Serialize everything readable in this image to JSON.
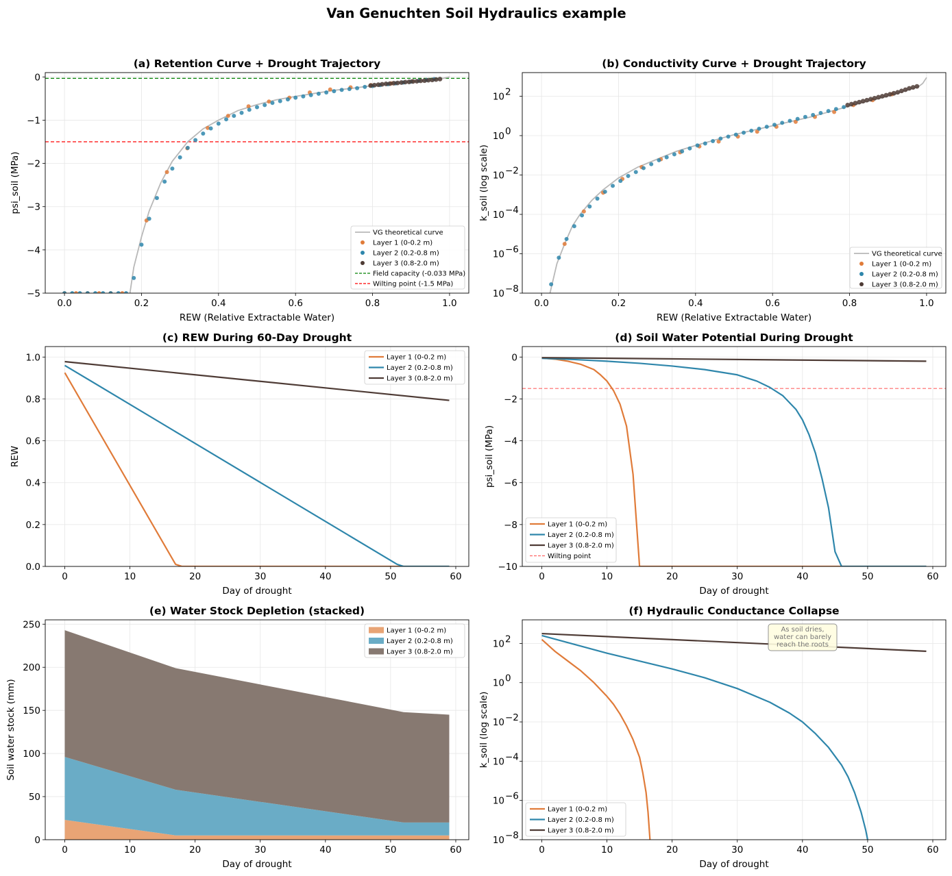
{
  "title": "Van Genuchten Soil Hydraulics example",
  "colors": {
    "layer1": "#e07b39",
    "layer2": "#2e86ab",
    "layer3": "#4e3b35",
    "layer1_fill": "#e8a475",
    "layer2_fill": "#6aacc6",
    "layer3_fill": "#877971",
    "theory": "#b8b8b8",
    "field_capacity": "#008000",
    "wilting": "#ff0000",
    "grid": "#e6e6e6"
  },
  "chart_data": [
    {
      "id": "a",
      "type": "scatter",
      "title": "(a)  Retention Curve + Drought Trajectory",
      "xlabel": "REW  (Relative Extractable Water)",
      "ylabel": "psi_soil  (MPa)",
      "xlim": [
        -0.05,
        1.05
      ],
      "ylim": [
        -5,
        0.1
      ],
      "yscale": "linear",
      "xticks": [
        0.0,
        0.2,
        0.4,
        0.6,
        0.8,
        1.0
      ],
      "xtick_labels": [
        "0.0",
        "0.2",
        "0.4",
        "0.6",
        "0.8",
        "1.0"
      ],
      "yticks": [
        0,
        -1,
        -2,
        -3,
        -4,
        -5
      ],
      "ytick_labels": [
        "0",
        "−1",
        "−2",
        "−3",
        "−4",
        "−5"
      ],
      "theory_curve": {
        "name": "VG theoretical curve",
        "x": [
          0.17,
          0.18,
          0.2,
          0.22,
          0.25,
          0.28,
          0.32,
          0.36,
          0.4,
          0.45,
          0.5,
          0.55,
          0.6,
          0.65,
          0.7,
          0.75,
          0.8,
          0.85,
          0.9,
          0.95,
          0.98,
          1.0
        ],
        "y": [
          -5.0,
          -4.4,
          -3.7,
          -3.1,
          -2.45,
          -1.95,
          -1.5,
          -1.2,
          -1.0,
          -0.78,
          -0.64,
          -0.53,
          -0.45,
          -0.38,
          -0.31,
          -0.26,
          -0.2,
          -0.15,
          -0.11,
          -0.07,
          -0.04,
          0.0
        ]
      },
      "scatter_series": [
        {
          "name": "Layer 1 (0-0.2 m)",
          "x": [
            0.0,
            0.03,
            0.06,
            0.09,
            0.12,
            0.15,
            0.213,
            0.266,
            0.319,
            0.372,
            0.425,
            0.478,
            0.531,
            0.584,
            0.637,
            0.69,
            0.743,
            0.796,
            0.849,
            0.902
          ],
          "y": [
            -5.0,
            -5.0,
            -5.0,
            -5.0,
            -5.0,
            -5.0,
            -3.32,
            -2.2,
            -1.65,
            -1.18,
            -0.9,
            -0.68,
            -0.57,
            -0.48,
            -0.36,
            -0.29,
            -0.24,
            -0.19,
            -0.15,
            -0.1
          ]
        },
        {
          "name": "Layer 2 (0.2-0.8 m)",
          "x": [
            0.0,
            0.02,
            0.04,
            0.06,
            0.08,
            0.1,
            0.12,
            0.14,
            0.16,
            0.18,
            0.2,
            0.22,
            0.24,
            0.26,
            0.28,
            0.3,
            0.32,
            0.34,
            0.36,
            0.38,
            0.4,
            0.42,
            0.44,
            0.46,
            0.48,
            0.5,
            0.52,
            0.54,
            0.56,
            0.58,
            0.6,
            0.62,
            0.64,
            0.66,
            0.68,
            0.7,
            0.72,
            0.74,
            0.76,
            0.78,
            0.8,
            0.82,
            0.84,
            0.86,
            0.88,
            0.9,
            0.92,
            0.94,
            0.96
          ],
          "y": [
            -5.0,
            -5.0,
            -5.0,
            -5.0,
            -5.0,
            -5.0,
            -5.0,
            -5.0,
            -5.0,
            -4.65,
            -3.88,
            -3.28,
            -2.8,
            -2.42,
            -2.12,
            -1.86,
            -1.64,
            -1.46,
            -1.31,
            -1.19,
            -1.08,
            -0.98,
            -0.9,
            -0.83,
            -0.76,
            -0.7,
            -0.65,
            -0.6,
            -0.56,
            -0.52,
            -0.48,
            -0.45,
            -0.42,
            -0.39,
            -0.36,
            -0.33,
            -0.3,
            -0.28,
            -0.26,
            -0.23,
            -0.21,
            -0.19,
            -0.17,
            -0.15,
            -0.13,
            -0.11,
            -0.09,
            -0.07,
            -0.05
          ]
        },
        {
          "name": "Layer 3 (0.8-2.0 m)",
          "x": [
            0.795,
            0.805,
            0.815,
            0.825,
            0.835,
            0.845,
            0.855,
            0.865,
            0.875,
            0.885,
            0.895,
            0.905,
            0.915,
            0.925,
            0.935,
            0.945,
            0.955,
            0.965,
            0.975
          ],
          "y": [
            -0.2,
            -0.19,
            -0.18,
            -0.17,
            -0.16,
            -0.155,
            -0.145,
            -0.14,
            -0.13,
            -0.12,
            -0.115,
            -0.105,
            -0.1,
            -0.09,
            -0.085,
            -0.075,
            -0.07,
            -0.06,
            -0.05
          ]
        }
      ],
      "hlines": [
        {
          "name": "Field capacity (-0.033 MPa)",
          "y": -0.033,
          "color_key": "field_capacity"
        },
        {
          "name": "Wilting point (-1.5 MPa)",
          "y": -1.5,
          "color_key": "wilting"
        }
      ],
      "legend": "lower-right"
    },
    {
      "id": "b",
      "type": "scatter",
      "title": "(b)  Conductivity Curve + Drought Trajectory",
      "xlabel": "REW  (Relative Extractable Water)",
      "ylabel": "k_soil  (log scale)",
      "xlim": [
        -0.05,
        1.05
      ],
      "ylim_log10": [
        -8,
        3.2
      ],
      "yscale": "log",
      "xticks": [
        0.0,
        0.2,
        0.4,
        0.6,
        0.8,
        1.0
      ],
      "xtick_labels": [
        "0.0",
        "0.2",
        "0.4",
        "0.6",
        "0.8",
        "1.0"
      ],
      "yticks_log10": [
        -8,
        -6,
        -4,
        -2,
        0,
        2
      ],
      "ytick_labels": [
        "10",
        "10",
        "10",
        "10",
        "10",
        "10"
      ],
      "ytick_exponents": [
        "−8",
        "−6",
        "−4",
        "−2",
        "0",
        "2"
      ],
      "theory_curve": {
        "name": "VG theoretical curve",
        "x": [
          0.022,
          0.04,
          0.06,
          0.08,
          0.1,
          0.13,
          0.16,
          0.2,
          0.25,
          0.3,
          0.35,
          0.4,
          0.5,
          0.6,
          0.7,
          0.8,
          0.85,
          0.9,
          0.95,
          0.98,
          0.99,
          1.0
        ],
        "log10_y": [
          -8.0,
          -6.5,
          -5.5,
          -4.6,
          -4.0,
          -3.3,
          -2.75,
          -2.15,
          -1.6,
          -1.2,
          -0.8,
          -0.5,
          0.05,
          0.5,
          0.95,
          1.5,
          1.75,
          2.0,
          2.3,
          2.5,
          2.65,
          2.95
        ]
      },
      "scatter_series": [
        {
          "name": "Layer 1 (0-0.2 m)",
          "x": [
            0.06,
            0.11,
            0.16,
            0.21,
            0.26,
            0.31,
            0.36,
            0.41,
            0.46,
            0.51,
            0.56,
            0.61,
            0.66,
            0.71,
            0.76,
            0.81,
            0.86,
            0.91
          ],
          "log10_y": [
            -5.5,
            -3.85,
            -2.9,
            -2.2,
            -1.6,
            -1.2,
            -0.85,
            -0.55,
            -0.3,
            -0.05,
            0.2,
            0.45,
            0.7,
            0.95,
            1.2,
            1.55,
            1.8,
            2.1
          ]
        },
        {
          "name": "Layer 2 (0.2-0.8 m)",
          "x": [
            0.025,
            0.045,
            0.065,
            0.085,
            0.105,
            0.125,
            0.145,
            0.165,
            0.185,
            0.205,
            0.225,
            0.245,
            0.265,
            0.285,
            0.305,
            0.325,
            0.345,
            0.365,
            0.385,
            0.405,
            0.425,
            0.445,
            0.465,
            0.485,
            0.505,
            0.525,
            0.545,
            0.565,
            0.585,
            0.605,
            0.625,
            0.645,
            0.665,
            0.685,
            0.705,
            0.725,
            0.745,
            0.765,
            0.785
          ],
          "log10_y": [
            -7.55,
            -6.2,
            -5.25,
            -4.6,
            -4.05,
            -3.6,
            -3.2,
            -2.85,
            -2.55,
            -2.3,
            -2.05,
            -1.85,
            -1.65,
            -1.45,
            -1.25,
            -1.1,
            -0.95,
            -0.8,
            -0.65,
            -0.5,
            -0.4,
            -0.28,
            -0.15,
            -0.05,
            0.05,
            0.15,
            0.25,
            0.35,
            0.45,
            0.55,
            0.65,
            0.75,
            0.85,
            0.95,
            1.05,
            1.15,
            1.25,
            1.35,
            1.45
          ]
        },
        {
          "name": "Layer 3 (0.8-2.0 m)",
          "x": [
            0.795,
            0.805,
            0.815,
            0.825,
            0.835,
            0.845,
            0.855,
            0.865,
            0.875,
            0.885,
            0.895,
            0.905,
            0.915,
            0.925,
            0.935,
            0.945,
            0.955,
            0.965,
            0.975
          ],
          "log10_y": [
            1.55,
            1.6,
            1.65,
            1.7,
            1.75,
            1.8,
            1.85,
            1.9,
            1.95,
            2.0,
            2.05,
            2.1,
            2.15,
            2.2,
            2.27,
            2.33,
            2.4,
            2.45,
            2.5
          ]
        }
      ],
      "legend": "lower-right"
    },
    {
      "id": "c",
      "type": "line",
      "title": "(c)  REW During 60-Day Drought",
      "xlabel": "Day of drought",
      "ylabel": "REW",
      "xlim": [
        -3,
        62
      ],
      "ylim": [
        0,
        1.05
      ],
      "yscale": "linear",
      "xticks": [
        0,
        10,
        20,
        30,
        40,
        50,
        60
      ],
      "xtick_labels": [
        "0",
        "10",
        "20",
        "30",
        "40",
        "50",
        "60"
      ],
      "yticks": [
        0.0,
        0.2,
        0.4,
        0.6,
        0.8,
        1.0
      ],
      "ytick_labels": [
        "0.0",
        "0.2",
        "0.4",
        "0.6",
        "0.8",
        "1.0"
      ],
      "series": [
        {
          "name": "Layer 1 (0-0.2 m)",
          "x": [
            0,
            17,
            18,
            59
          ],
          "y": [
            0.925,
            0.01,
            0.0,
            0.0
          ]
        },
        {
          "name": "Layer 2 (0.2-0.8 m)",
          "x": [
            0,
            51,
            52,
            59
          ],
          "y": [
            0.96,
            0.01,
            0.0,
            0.0
          ]
        },
        {
          "name": "Layer 3 (0.8-2.0 m)",
          "x": [
            0,
            59
          ],
          "y": [
            0.978,
            0.793
          ]
        }
      ],
      "legend": "upper-right"
    },
    {
      "id": "d",
      "type": "line",
      "title": "(d)  Soil Water Potential During Drought",
      "xlabel": "Day of drought",
      "ylabel": "psi_soil  (MPa)",
      "xlim": [
        -3,
        62
      ],
      "ylim": [
        -10,
        0.5
      ],
      "yscale": "linear",
      "xticks": [
        0,
        10,
        20,
        30,
        40,
        50,
        60
      ],
      "xtick_labels": [
        "0",
        "10",
        "20",
        "30",
        "40",
        "50",
        "60"
      ],
      "yticks": [
        0,
        -2,
        -4,
        -6,
        -8,
        -10
      ],
      "ytick_labels": [
        "0",
        "−2",
        "−4",
        "−6",
        "−8",
        "−10"
      ],
      "series": [
        {
          "name": "Layer 1 (0-0.2 m)",
          "x": [
            0,
            2,
            4,
            6,
            8,
            9,
            10,
            11,
            12,
            13,
            14,
            15,
            16,
            59
          ],
          "y": [
            -0.05,
            -0.1,
            -0.2,
            -0.35,
            -0.6,
            -0.85,
            -1.15,
            -1.6,
            -2.25,
            -3.3,
            -5.6,
            -10.0,
            -10.0,
            -10.0
          ]
        },
        {
          "name": "Layer 2 (0.2-0.8 m)",
          "x": [
            0,
            5,
            10,
            15,
            20,
            25,
            30,
            33,
            35,
            37,
            39,
            40,
            41,
            42,
            43,
            44,
            45,
            46,
            47,
            59
          ],
          "y": [
            -0.06,
            -0.12,
            -0.2,
            -0.3,
            -0.43,
            -0.6,
            -0.85,
            -1.15,
            -1.45,
            -1.85,
            -2.5,
            -3.0,
            -3.7,
            -4.6,
            -5.8,
            -7.2,
            -9.3,
            -10.0,
            -10.0,
            -10.0
          ]
        },
        {
          "name": "Layer 3 (0.8-2.0 m)",
          "x": [
            0,
            59
          ],
          "y": [
            -0.03,
            -0.2
          ]
        }
      ],
      "hlines": [
        {
          "name": "Wilting point",
          "y": -1.5,
          "color_key": "wilting"
        }
      ],
      "legend": "lower-left"
    },
    {
      "id": "e",
      "type": "area",
      "stacked": true,
      "title": "(e)  Water Stock Depletion (stacked)",
      "xlabel": "Day of drought",
      "ylabel": "Soil water stock  (mm)",
      "xlim": [
        -3,
        62
      ],
      "ylim": [
        0,
        255
      ],
      "yscale": "linear",
      "xticks": [
        0,
        10,
        20,
        30,
        40,
        50,
        60
      ],
      "xtick_labels": [
        "0",
        "10",
        "20",
        "30",
        "40",
        "50",
        "60"
      ],
      "yticks": [
        0,
        50,
        100,
        150,
        200,
        250
      ],
      "ytick_labels": [
        "0",
        "50",
        "100",
        "150",
        "200",
        "250"
      ],
      "x": [
        0,
        17,
        52,
        59
      ],
      "series": [
        {
          "name": "Layer 1 (0-0.2 m)",
          "values": [
            23,
            5,
            5,
            5
          ]
        },
        {
          "name": "Layer 2 (0.2-0.8 m)",
          "values": [
            73,
            53,
            15,
            15
          ]
        },
        {
          "name": "Layer 3 (0.8-2.0 m)",
          "values": [
            147,
            141,
            128,
            125
          ]
        }
      ],
      "legend": "upper-right"
    },
    {
      "id": "f",
      "type": "line",
      "title": "(f)  Hydraulic Conductance Collapse",
      "xlabel": "Day of drought",
      "ylabel": "k_soil  (log scale)",
      "xlim": [
        -3,
        62
      ],
      "ylim_log10": [
        -8,
        3.2
      ],
      "yscale": "log",
      "xticks": [
        0,
        10,
        20,
        30,
        40,
        50,
        60
      ],
      "xtick_labels": [
        "0",
        "10",
        "20",
        "30",
        "40",
        "50",
        "60"
      ],
      "yticks_log10": [
        -8,
        -6,
        -4,
        -2,
        0,
        2
      ],
      "ytick_labels": [
        "10",
        "10",
        "10",
        "10",
        "10",
        "10"
      ],
      "ytick_exponents": [
        "−8",
        "−6",
        "−4",
        "−2",
        "0",
        "2"
      ],
      "series": [
        {
          "name": "Layer 1 (0-0.2 m)",
          "x": [
            0,
            2,
            4,
            6,
            8,
            10,
            11,
            12,
            13,
            14,
            15,
            15.5,
            16,
            16.3,
            16.6
          ],
          "log10_y": [
            2.2,
            1.6,
            1.1,
            0.6,
            0.0,
            -0.7,
            -1.1,
            -1.6,
            -2.2,
            -2.9,
            -3.8,
            -4.6,
            -5.6,
            -6.6,
            -8.0
          ]
        },
        {
          "name": "Layer 2 (0.2-0.8 m)",
          "x": [
            0,
            5,
            10,
            15,
            20,
            25,
            30,
            35,
            38,
            40,
            42,
            44,
            46,
            47,
            48,
            49,
            49.7,
            50.0
          ],
          "log10_y": [
            2.4,
            1.95,
            1.5,
            1.1,
            0.7,
            0.25,
            -0.3,
            -1.0,
            -1.55,
            -2.0,
            -2.6,
            -3.3,
            -4.2,
            -4.8,
            -5.6,
            -6.6,
            -7.5,
            -8.0
          ]
        },
        {
          "name": "Layer 3 (0.8-2.0 m)",
          "x": [
            0,
            59
          ],
          "log10_y": [
            2.5,
            1.6
          ]
        }
      ],
      "annotation": {
        "lines": [
          "As soil dries,",
          "water can barely",
          "reach the roots"
        ]
      },
      "legend": "lower-left"
    }
  ]
}
